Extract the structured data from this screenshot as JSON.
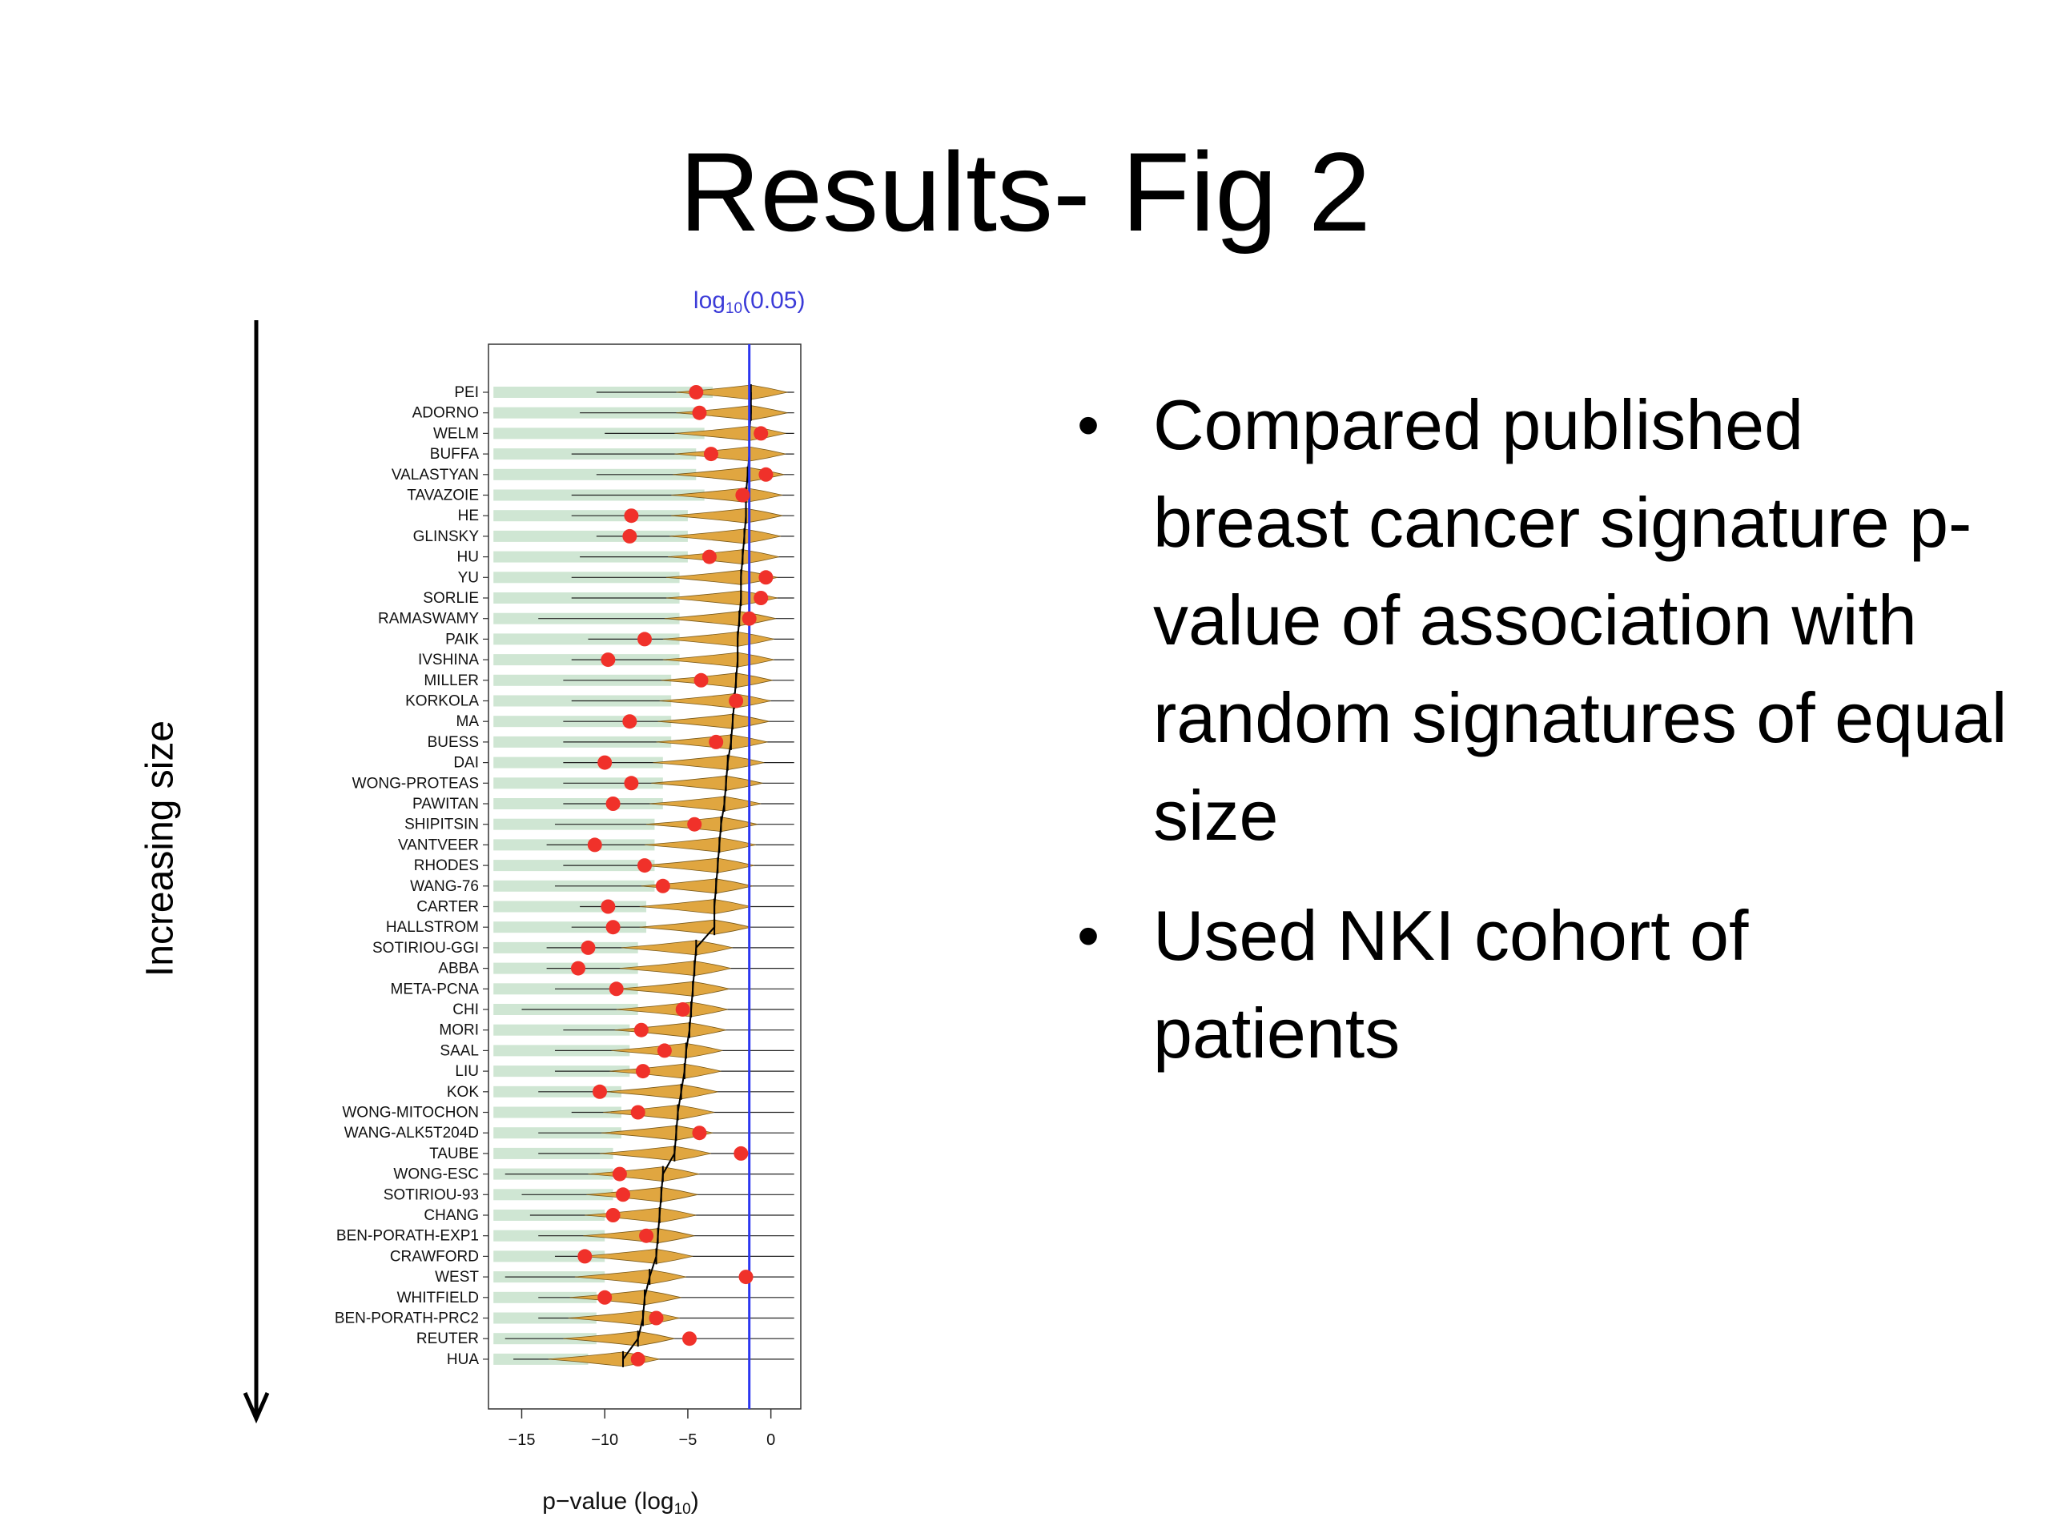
{
  "slide": {
    "title": "Results- Fig 2",
    "side_label": "Increasing size",
    "bullets": [
      "Compared published breast cancer signature p-value of association with random signatures of equal size",
      "Used NKI cohort of patients"
    ],
    "bullet_symbol": "•"
  },
  "chart_data": {
    "type": "violin-dot",
    "xlabel_main": "p−value (log",
    "xlabel_sub": "10",
    "xlabel_end": ")",
    "threshold_label_main": "log",
    "threshold_label_sub": "10",
    "threshold_label_end": "(0.05)",
    "threshold_value": -1.3,
    "xlim": [
      -17,
      1.8
    ],
    "xticks": [
      -15,
      -10,
      -5,
      0
    ],
    "xtick_labels": [
      "−15",
      "−10",
      "−5",
      "0"
    ],
    "colors": {
      "background_bar": "#cfe6d3",
      "violin": "#e0a640",
      "observed_dot": "#f0312a",
      "threshold_line": "#2b36f0",
      "median_tick": "#000000",
      "threshold_label": "#3b3bd8"
    },
    "series": [
      {
        "name": "PEI",
        "observed": -4.5,
        "median": -1.2,
        "whisker_low": -10.5,
        "bar_start": -3.5
      },
      {
        "name": "ADORNO",
        "observed": -4.3,
        "median": -1.2,
        "whisker_low": -11.5,
        "bar_start": -4.0
      },
      {
        "name": "WELM",
        "observed": -0.6,
        "median": -1.3,
        "whisker_low": -10.0,
        "bar_start": -4.0
      },
      {
        "name": "BUFFA",
        "observed": -3.6,
        "median": -1.3,
        "whisker_low": -12.0,
        "bar_start": -4.5
      },
      {
        "name": "VALASTYAN",
        "observed": -0.3,
        "median": -1.4,
        "whisker_low": -10.5,
        "bar_start": -4.5
      },
      {
        "name": "TAVAZOIE",
        "observed": -1.7,
        "median": -1.5,
        "whisker_low": -12.0,
        "bar_start": -4.0
      },
      {
        "name": "HE",
        "observed": -8.4,
        "median": -1.5,
        "whisker_low": -12.0,
        "bar_start": -5.0
      },
      {
        "name": "GLINSKY",
        "observed": -8.5,
        "median": -1.6,
        "whisker_low": -10.5,
        "bar_start": -5.0
      },
      {
        "name": "HU",
        "observed": -3.7,
        "median": -1.7,
        "whisker_low": -11.5,
        "bar_start": -5.0
      },
      {
        "name": "YU",
        "observed": -0.3,
        "median": -1.8,
        "whisker_low": -12.0,
        "bar_start": -5.5
      },
      {
        "name": "SORLIE",
        "observed": -0.6,
        "median": -1.8,
        "whisker_low": -12.0,
        "bar_start": -5.5
      },
      {
        "name": "RAMASWAMY",
        "observed": -1.3,
        "median": -1.9,
        "whisker_low": -14.0,
        "bar_start": -5.5
      },
      {
        "name": "PAIK",
        "observed": -7.6,
        "median": -2.0,
        "whisker_low": -11.0,
        "bar_start": -5.5
      },
      {
        "name": "IVSHINA",
        "observed": -9.8,
        "median": -2.0,
        "whisker_low": -12.0,
        "bar_start": -5.5
      },
      {
        "name": "MILLER",
        "observed": -4.2,
        "median": -2.1,
        "whisker_low": -12.5,
        "bar_start": -6.0
      },
      {
        "name": "KORKOLA",
        "observed": -2.1,
        "median": -2.2,
        "whisker_low": -12.0,
        "bar_start": -6.0
      },
      {
        "name": "MA",
        "observed": -8.5,
        "median": -2.3,
        "whisker_low": -12.5,
        "bar_start": -6.0
      },
      {
        "name": "BUESS",
        "observed": -3.3,
        "median": -2.4,
        "whisker_low": -12.5,
        "bar_start": -6.0
      },
      {
        "name": "DAI",
        "observed": -10.0,
        "median": -2.6,
        "whisker_low": -12.5,
        "bar_start": -6.5
      },
      {
        "name": "WONG-PROTEAS",
        "observed": -8.4,
        "median": -2.7,
        "whisker_low": -12.5,
        "bar_start": -6.5
      },
      {
        "name": "PAWITAN",
        "observed": -9.5,
        "median": -2.8,
        "whisker_low": -12.5,
        "bar_start": -6.5
      },
      {
        "name": "SHIPITSIN",
        "observed": -4.6,
        "median": -3.0,
        "whisker_low": -13.0,
        "bar_start": -7.0
      },
      {
        "name": "VANTVEER",
        "observed": -10.6,
        "median": -3.1,
        "whisker_low": -13.5,
        "bar_start": -7.0
      },
      {
        "name": "RHODES",
        "observed": -7.6,
        "median": -3.2,
        "whisker_low": -12.5,
        "bar_start": -7.0
      },
      {
        "name": "WANG-76",
        "observed": -6.5,
        "median": -3.3,
        "whisker_low": -13.0,
        "bar_start": -7.0
      },
      {
        "name": "CARTER",
        "observed": -9.8,
        "median": -3.4,
        "whisker_low": -11.5,
        "bar_start": -7.5
      },
      {
        "name": "HALLSTROM",
        "observed": -9.5,
        "median": -3.4,
        "whisker_low": -12.0,
        "bar_start": -7.5
      },
      {
        "name": "SOTIRIOU-GGI",
        "observed": -11.0,
        "median": -4.5,
        "whisker_low": -13.5,
        "bar_start": -8.0
      },
      {
        "name": "ABBA",
        "observed": -11.6,
        "median": -4.6,
        "whisker_low": -13.5,
        "bar_start": -8.0
      },
      {
        "name": "META-PCNA",
        "observed": -9.3,
        "median": -4.7,
        "whisker_low": -13.0,
        "bar_start": -8.0
      },
      {
        "name": "CHI",
        "observed": -5.3,
        "median": -4.8,
        "whisker_low": -15.0,
        "bar_start": -8.0
      },
      {
        "name": "MORI",
        "observed": -7.8,
        "median": -4.9,
        "whisker_low": -12.5,
        "bar_start": -8.5
      },
      {
        "name": "SAAL",
        "observed": -6.4,
        "median": -5.1,
        "whisker_low": -13.0,
        "bar_start": -8.5
      },
      {
        "name": "LIU",
        "observed": -7.7,
        "median": -5.2,
        "whisker_low": -13.0,
        "bar_start": -8.5
      },
      {
        "name": "KOK",
        "observed": -10.3,
        "median": -5.4,
        "whisker_low": -14.0,
        "bar_start": -9.0
      },
      {
        "name": "WONG-MITOCHON",
        "observed": -8.0,
        "median": -5.6,
        "whisker_low": -12.0,
        "bar_start": -9.0
      },
      {
        "name": "WANG-ALK5T204D",
        "observed": -4.3,
        "median": -5.7,
        "whisker_low": -14.0,
        "bar_start": -9.0
      },
      {
        "name": "TAUBE",
        "observed": -1.8,
        "median": -5.8,
        "whisker_low": -14.0,
        "bar_start": -9.5
      },
      {
        "name": "WONG-ESC",
        "observed": -9.1,
        "median": -6.5,
        "whisker_low": -16.0,
        "bar_start": -9.5
      },
      {
        "name": "SOTIRIOU-93",
        "observed": -8.9,
        "median": -6.6,
        "whisker_low": -15.0,
        "bar_start": -9.5
      },
      {
        "name": "CHANG",
        "observed": -9.5,
        "median": -6.7,
        "whisker_low": -14.5,
        "bar_start": -10.0
      },
      {
        "name": "BEN-PORATH-EXP1",
        "observed": -7.5,
        "median": -6.8,
        "whisker_low": -14.0,
        "bar_start": -10.0
      },
      {
        "name": "CRAWFORD",
        "observed": -11.2,
        "median": -6.9,
        "whisker_low": -13.0,
        "bar_start": -10.0
      },
      {
        "name": "WEST",
        "observed": -1.5,
        "median": -7.3,
        "whisker_low": -16.0,
        "bar_start": -10.0
      },
      {
        "name": "WHITFIELD",
        "observed": -10.0,
        "median": -7.6,
        "whisker_low": -14.0,
        "bar_start": -10.5
      },
      {
        "name": "BEN-PORATH-PRC2",
        "observed": -6.9,
        "median": -7.7,
        "whisker_low": -14.0,
        "bar_start": -10.5
      },
      {
        "name": "REUTER",
        "observed": -4.9,
        "median": -8.0,
        "whisker_low": -16.0,
        "bar_start": -10.5
      },
      {
        "name": "HUA",
        "observed": -8.0,
        "median": -8.9,
        "whisker_low": -15.5,
        "bar_start": -11.0
      }
    ]
  }
}
